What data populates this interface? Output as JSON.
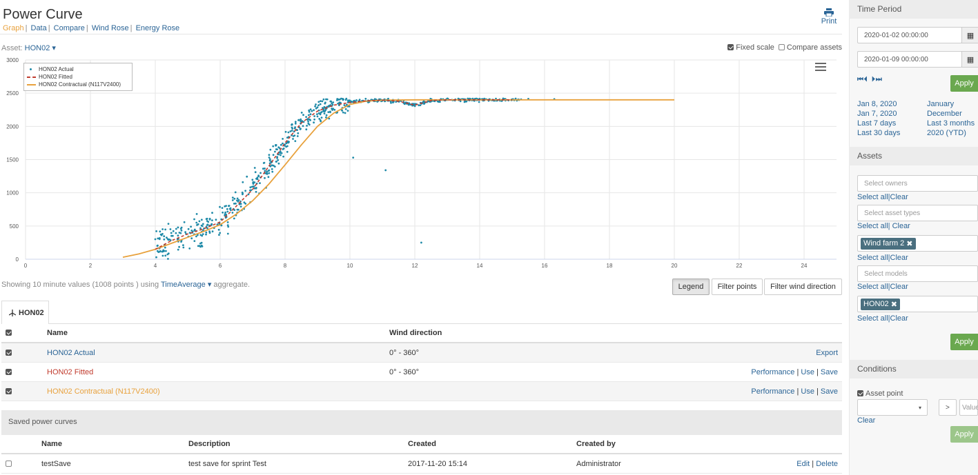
{
  "header": {
    "title": "Power Curve",
    "nav": [
      "Graph",
      "Data",
      "Compare",
      "Wind Rose",
      "Energy Rose"
    ],
    "print_label": "Print"
  },
  "asset_selector": {
    "label": "Asset:",
    "value": "HON02"
  },
  "scale_options": {
    "fixed_scale": "Fixed scale",
    "compare_assets": "Compare assets"
  },
  "legend": {
    "items": [
      "HON02 Actual",
      "HON02 Fitted",
      "HON02 Contractual (N117V2400)"
    ]
  },
  "points_info": {
    "prefix": "Showing 10 minute values (1008 points ) using",
    "aggregate_fn": "TimeAverage",
    "suffix": "aggregate."
  },
  "buttons": {
    "legend": "Legend",
    "filter_points": "Filter points",
    "filter_wind": "Filter wind direction"
  },
  "tab": {
    "label": "HON02"
  },
  "curves_table": {
    "headers": {
      "name": "Name",
      "wind": "Wind direction"
    },
    "rows": [
      {
        "name": "HON02 Actual",
        "wind": "0° - 360°",
        "actions": [
          "Export"
        ]
      },
      {
        "name": "HON02 Fitted",
        "wind": "0° - 360°",
        "actions": [
          "Performance",
          "Use",
          "Save"
        ]
      },
      {
        "name": "HON02 Contractual (N117V2400)",
        "wind": "",
        "actions": [
          "Performance",
          "Use",
          "Save"
        ]
      }
    ]
  },
  "saved": {
    "title": "Saved power curves",
    "headers": {
      "name": "Name",
      "description": "Description",
      "created": "Created",
      "created_by": "Created by"
    },
    "rows": [
      {
        "name": "testSave",
        "description": "test save for sprint Test",
        "created": "2017-11-20 15:14",
        "created_by": "Administrator",
        "actions": [
          "Edit",
          "Delete"
        ]
      }
    ]
  },
  "sidebar": {
    "time_period": {
      "title": "Time Period",
      "start": "2020-01-02 00:00:00",
      "end": "2020-01-09 00:00:00",
      "apply": "Apply",
      "quick_left": [
        "Jan 8, 2020",
        "Jan 7, 2020",
        "Last 7 days",
        "Last 30 days"
      ],
      "quick_right": [
        "January",
        "December",
        "Last 3 months",
        "2020 (YTD)"
      ]
    },
    "assets": {
      "title": "Assets",
      "owners_placeholder": "Select owners",
      "types_placeholder": "Select asset types",
      "farm_tag": "Wind farm 2",
      "models_placeholder": "Select models",
      "asset_tag": "HON02",
      "select_all": "Select all",
      "clear": "Clear",
      "apply": "Apply"
    },
    "conditions": {
      "title": "Conditions",
      "asset_point": "Asset point",
      "op": ">",
      "value_placeholder": "Value",
      "clear": "Clear",
      "apply": "Apply"
    }
  },
  "chart_data": {
    "type": "scatter",
    "xlim": [
      0,
      25
    ],
    "ylim": [
      0,
      3000
    ],
    "x_ticks": [
      0,
      2,
      4,
      6,
      8,
      10,
      12,
      14,
      16,
      18,
      20,
      22,
      24
    ],
    "y_ticks": [
      0,
      500,
      1000,
      1500,
      2000,
      2500,
      3000
    ],
    "grid": true,
    "legend_position": "top-left",
    "series": [
      {
        "name": "HON02 Actual",
        "kind": "scatter",
        "color": "#1f8aa8",
        "points": 1008
      },
      {
        "name": "HON02 Fitted",
        "kind": "line",
        "color": "#c0392b",
        "dashed": true,
        "x": [
          4,
          4.5,
          5,
          5.5,
          6,
          6.5,
          7,
          7.5,
          8,
          8.5,
          9,
          9.5,
          10,
          10.5,
          11,
          11.5,
          12,
          12.5,
          13,
          14,
          15
        ],
        "y": [
          150,
          280,
          380,
          460,
          560,
          800,
          1050,
          1400,
          1750,
          2050,
          2230,
          2320,
          2360,
          2385,
          2395,
          2380,
          2320,
          2390,
          2400,
          2400,
          2400
        ]
      },
      {
        "name": "HON02 Contractual (N117V2400)",
        "kind": "line",
        "color": "#e8a13c",
        "x": [
          3,
          3.5,
          4,
          4.5,
          5,
          5.5,
          6,
          6.5,
          7,
          7.5,
          8,
          8.5,
          9,
          9.5,
          10,
          10.5,
          11,
          12,
          13,
          16,
          20
        ],
        "y": [
          30,
          80,
          150,
          240,
          330,
          420,
          520,
          680,
          880,
          1130,
          1420,
          1720,
          2000,
          2200,
          2330,
          2380,
          2395,
          2400,
          2400,
          2400,
          2400
        ]
      }
    ],
    "outliers": [
      [
        10.1,
        1530
      ],
      [
        11.1,
        1340
      ],
      [
        12.2,
        250
      ]
    ]
  }
}
